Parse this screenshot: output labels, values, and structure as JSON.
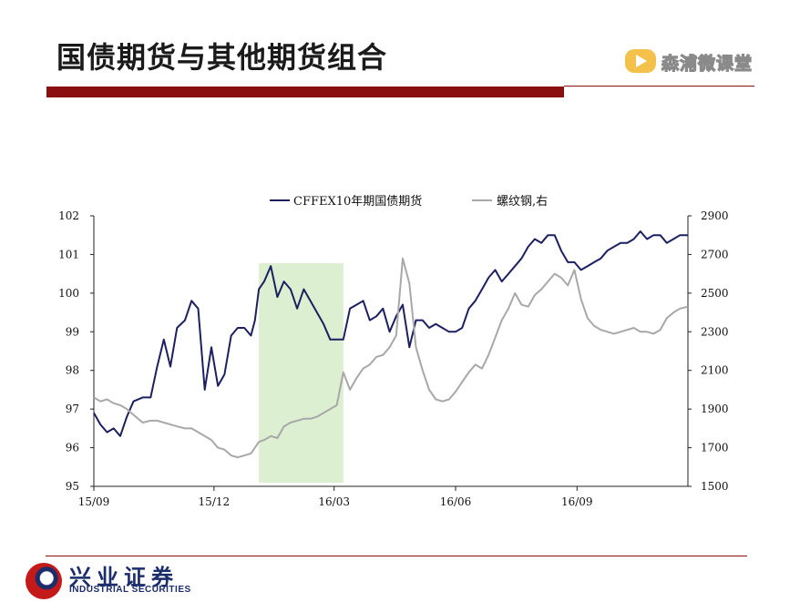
{
  "page": {
    "title": "国债期货与其他期货组合",
    "brand": "森浦微课堂",
    "footer_cn": "兴业证券",
    "footer_en": "INDUSTRIAL SECURITIES"
  },
  "colors": {
    "accent_bar": "#8b0f0f",
    "series_left": "#1c2060",
    "series_right": "#a8a8a8",
    "highlight": "#dcefd0"
  },
  "chart_data": {
    "type": "line",
    "legend": [
      "CFFEX10年期国债期货",
      "螺纹钢,右"
    ],
    "legend_position": "top",
    "grid": false,
    "x_ticks": [
      "15/09",
      "15/12",
      "16/03",
      "16/06",
      "16/09"
    ],
    "x_range": [
      "2015-09-01",
      "2016-11-24"
    ],
    "y_left": {
      "range": [
        95,
        102
      ],
      "ticks": [
        "95",
        "96",
        "97",
        "98",
        "99",
        "100",
        "101",
        "102"
      ]
    },
    "y_right": {
      "range": [
        1500,
        2900
      ],
      "ticks": [
        "1500",
        "1700",
        "1900",
        "2100",
        "2300",
        "2500",
        "2700",
        "2900"
      ]
    },
    "highlight_band": [
      "2016-01-04",
      "2016-03-08"
    ],
    "series": [
      {
        "name": "CFFEX10年期国债期货",
        "axis": "left",
        "x": [
          "2015-09-01",
          "2015-09-06",
          "2015-09-11",
          "2015-09-16",
          "2015-09-21",
          "2015-09-26",
          "2015-10-01",
          "2015-10-08",
          "2015-10-14",
          "2015-10-19",
          "2015-10-24",
          "2015-10-29",
          "2015-11-03",
          "2015-11-09",
          "2015-11-14",
          "2015-11-19",
          "2015-11-24",
          "2015-11-29",
          "2015-12-04",
          "2015-12-09",
          "2015-12-14",
          "2015-12-19",
          "2015-12-24",
          "2015-12-29",
          "2016-01-01",
          "2016-01-04",
          "2016-01-08",
          "2016-01-13",
          "2016-01-18",
          "2016-01-23",
          "2016-01-28",
          "2016-02-02",
          "2016-02-07",
          "2016-02-12",
          "2016-02-17",
          "2016-02-22",
          "2016-02-27",
          "2016-03-03",
          "2016-03-08",
          "2016-03-13",
          "2016-03-18",
          "2016-03-23",
          "2016-03-28",
          "2016-04-02",
          "2016-04-07",
          "2016-04-12",
          "2016-04-17",
          "2016-04-22",
          "2016-04-27",
          "2016-05-02",
          "2016-05-07",
          "2016-05-12",
          "2016-05-17",
          "2016-05-22",
          "2016-05-27",
          "2016-06-01",
          "2016-06-06",
          "2016-06-11",
          "2016-06-16",
          "2016-06-21",
          "2016-06-26",
          "2016-07-01",
          "2016-07-06",
          "2016-07-11",
          "2016-07-16",
          "2016-07-21",
          "2016-07-26",
          "2016-07-31",
          "2016-08-05",
          "2016-08-10",
          "2016-08-15",
          "2016-08-20",
          "2016-08-25",
          "2016-08-30",
          "2016-09-04",
          "2016-09-09",
          "2016-09-14",
          "2016-09-19",
          "2016-09-24",
          "2016-09-29",
          "2016-10-04",
          "2016-10-09",
          "2016-10-14",
          "2016-10-19",
          "2016-10-24",
          "2016-10-29",
          "2016-11-03",
          "2016-11-08",
          "2016-11-13",
          "2016-11-18",
          "2016-11-24"
        ],
        "values": [
          96.9,
          96.6,
          96.4,
          96.5,
          96.3,
          96.8,
          97.2,
          97.3,
          97.3,
          98.1,
          98.8,
          98.1,
          99.1,
          99.3,
          99.8,
          99.6,
          97.5,
          98.6,
          97.6,
          97.9,
          98.9,
          99.1,
          99.1,
          98.9,
          99.3,
          100.1,
          100.3,
          100.7,
          99.9,
          100.3,
          100.1,
          99.6,
          100.1,
          99.8,
          99.5,
          99.2,
          98.8,
          98.8,
          98.8,
          99.6,
          99.7,
          99.8,
          99.3,
          99.4,
          99.6,
          99.0,
          99.4,
          99.7,
          98.6,
          99.3,
          99.3,
          99.1,
          99.2,
          99.1,
          99.0,
          99.0,
          99.1,
          99.6,
          99.8,
          100.1,
          100.4,
          100.6,
          100.3,
          100.5,
          100.7,
          100.9,
          101.2,
          101.4,
          101.3,
          101.5,
          101.5,
          101.1,
          100.8,
          100.8,
          100.6,
          100.7,
          100.8,
          100.9,
          101.1,
          101.2,
          101.3,
          101.3,
          101.4,
          101.6,
          101.4,
          101.5,
          101.5,
          101.3,
          101.4,
          101.5,
          101.5
        ]
      },
      {
        "name": "螺纹钢,右",
        "axis": "right",
        "x": [
          "2015-09-01",
          "2015-09-06",
          "2015-09-11",
          "2015-09-16",
          "2015-09-21",
          "2015-09-26",
          "2015-10-01",
          "2015-10-08",
          "2015-10-14",
          "2015-10-19",
          "2015-10-24",
          "2015-10-29",
          "2015-11-03",
          "2015-11-09",
          "2015-11-14",
          "2015-11-19",
          "2015-11-24",
          "2015-11-29",
          "2015-12-04",
          "2015-12-09",
          "2015-12-14",
          "2015-12-19",
          "2015-12-24",
          "2015-12-29",
          "2016-01-01",
          "2016-01-04",
          "2016-01-08",
          "2016-01-13",
          "2016-01-18",
          "2016-01-23",
          "2016-01-28",
          "2016-02-02",
          "2016-02-07",
          "2016-02-12",
          "2016-02-17",
          "2016-02-22",
          "2016-02-27",
          "2016-03-03",
          "2016-03-08",
          "2016-03-13",
          "2016-03-18",
          "2016-03-23",
          "2016-03-28",
          "2016-04-02",
          "2016-04-07",
          "2016-04-12",
          "2016-04-17",
          "2016-04-22",
          "2016-04-27",
          "2016-05-02",
          "2016-05-07",
          "2016-05-12",
          "2016-05-17",
          "2016-05-22",
          "2016-05-27",
          "2016-06-01",
          "2016-06-06",
          "2016-06-11",
          "2016-06-16",
          "2016-06-21",
          "2016-06-26",
          "2016-07-01",
          "2016-07-06",
          "2016-07-11",
          "2016-07-16",
          "2016-07-21",
          "2016-07-26",
          "2016-07-31",
          "2016-08-05",
          "2016-08-10",
          "2016-08-15",
          "2016-08-20",
          "2016-08-25",
          "2016-08-30",
          "2016-09-04",
          "2016-09-09",
          "2016-09-14",
          "2016-09-19",
          "2016-09-24",
          "2016-09-29",
          "2016-10-04",
          "2016-10-09",
          "2016-10-14",
          "2016-10-19",
          "2016-10-24",
          "2016-10-29",
          "2016-11-03",
          "2016-11-08",
          "2016-11-13",
          "2016-11-18",
          "2016-11-24"
        ],
        "values": [
          1960,
          1940,
          1950,
          1930,
          1920,
          1900,
          1870,
          1830,
          1840,
          1840,
          1830,
          1820,
          1810,
          1800,
          1800,
          1780,
          1760,
          1740,
          1700,
          1690,
          1660,
          1650,
          1660,
          1670,
          1700,
          1730,
          1740,
          1760,
          1750,
          1810,
          1830,
          1840,
          1850,
          1850,
          1860,
          1880,
          1900,
          1920,
          2090,
          2000,
          2060,
          2110,
          2130,
          2170,
          2180,
          2220,
          2280,
          2680,
          2550,
          2220,
          2100,
          2000,
          1950,
          1940,
          1950,
          1990,
          2040,
          2090,
          2130,
          2110,
          2180,
          2270,
          2360,
          2420,
          2500,
          2440,
          2430,
          2490,
          2520,
          2560,
          2600,
          2580,
          2540,
          2620,
          2470,
          2370,
          2330,
          2310,
          2300,
          2290,
          2300,
          2310,
          2320,
          2300,
          2300,
          2290,
          2310,
          2370,
          2400,
          2420,
          2430
        ]
      }
    ]
  }
}
